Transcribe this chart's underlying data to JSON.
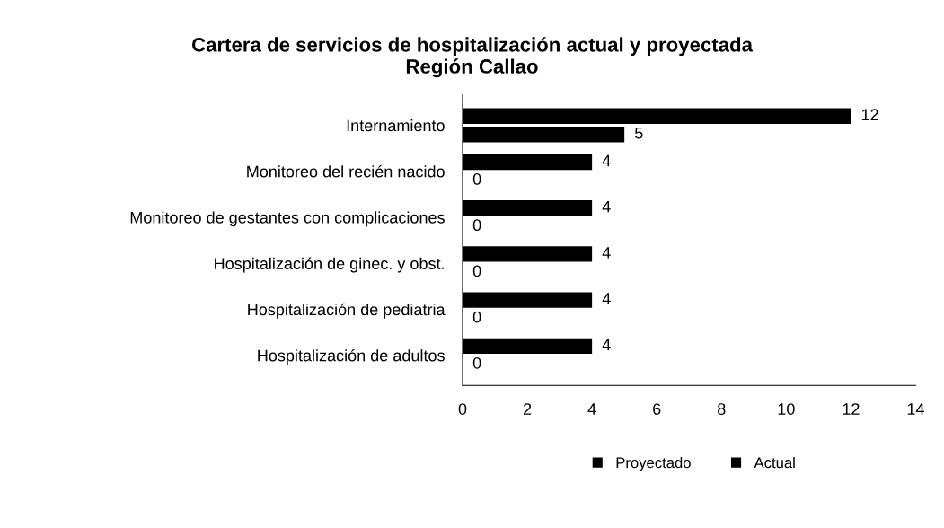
{
  "chart_data": {
    "type": "bar",
    "orientation": "horizontal",
    "title": "Cartera de servicios de hospitalización actual y proyectada\nRegión Callao",
    "categories": [
      "Internamiento",
      "Monitoreo del recién nacido",
      "Monitoreo de gestantes con complicaciones",
      "Hospitalización de ginec. y obst.",
      "Hospitalización de pediatria",
      "Hospitalización de adultos"
    ],
    "series": [
      {
        "name": "Proyectado",
        "color": "#000000",
        "values": [
          12,
          4,
          4,
          4,
          4,
          4
        ]
      },
      {
        "name": "Actual",
        "color": "#000000",
        "values": [
          5,
          0,
          0,
          0,
          0,
          0
        ]
      }
    ],
    "xlim": [
      0,
      14
    ],
    "xticks": [
      0,
      2,
      4,
      6,
      8,
      10,
      12,
      14
    ],
    "data_labels": true,
    "grid": false,
    "legend": "bottom"
  }
}
